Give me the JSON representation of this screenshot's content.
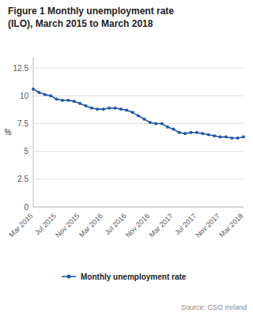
{
  "chart_data": {
    "type": "line",
    "title": "Figure 1 Monthly unemployment rate",
    "subtitle": "(ILO), March 2015 to March 2018",
    "ylabel": "%",
    "annotations": [
      "Source: CSO Ireland"
    ],
    "categories": [
      "Mar 2015",
      null,
      null,
      null,
      "Jul 2015",
      null,
      null,
      null,
      "Nov 2015",
      null,
      null,
      null,
      "Mar 2016",
      null,
      null,
      null,
      "Jul 2016",
      null,
      null,
      null,
      "Nov 2016",
      null,
      null,
      null,
      "Mar 2017",
      null,
      null,
      null,
      "Jul 2017",
      null,
      null,
      null,
      "Nov 2017",
      null,
      null,
      null,
      "Mar 2018"
    ],
    "series": [
      {
        "name": "Monthly unemployment rate",
        "color": "#2057a7",
        "marker": "circle",
        "values": [
          10.6,
          10.3,
          10.1,
          10.0,
          9.7,
          9.6,
          9.6,
          9.5,
          9.3,
          9.1,
          8.9,
          8.8,
          8.8,
          8.9,
          8.9,
          8.8,
          8.7,
          8.5,
          8.2,
          7.9,
          7.6,
          7.5,
          7.5,
          7.2,
          7.0,
          6.7,
          6.6,
          6.7,
          6.7,
          6.6,
          6.5,
          6.4,
          6.3,
          6.3,
          6.2,
          6.2,
          6.3
        ]
      }
    ],
    "ylim": [
      0,
      13.5
    ],
    "yticks": [
      0,
      2.5,
      5,
      7.5,
      10,
      12.5
    ],
    "grid": true,
    "legend": "bottom"
  }
}
